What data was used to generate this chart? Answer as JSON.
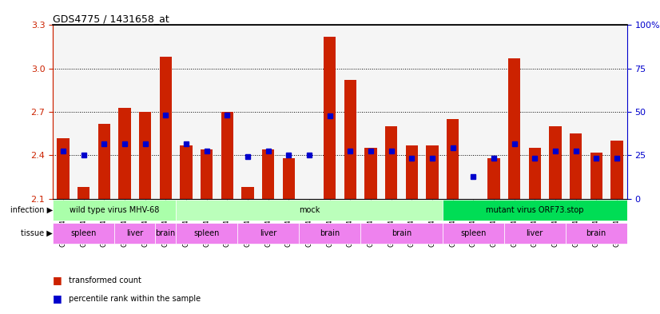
{
  "title": "GDS4775 / 1431658_at",
  "samples": [
    "GSM1243471",
    "GSM1243472",
    "GSM1243473",
    "GSM1243462",
    "GSM1243463",
    "GSM1243464",
    "GSM1243480",
    "GSM1243481",
    "GSM1243482",
    "GSM1243468",
    "GSM1243469",
    "GSM1243470",
    "GSM1243458",
    "GSM1243459",
    "GSM1243460",
    "GSM1243461",
    "GSM1243477",
    "GSM1243478",
    "GSM1243479",
    "GSM1243474",
    "GSM1243475",
    "GSM1243476",
    "GSM1243465",
    "GSM1243466",
    "GSM1243467",
    "GSM1243483",
    "GSM1243484",
    "GSM1243485"
  ],
  "red_values": [
    2.52,
    2.18,
    2.62,
    2.73,
    2.7,
    3.08,
    2.47,
    2.44,
    2.7,
    2.18,
    2.44,
    2.38,
    2.1,
    3.22,
    2.92,
    2.45,
    2.6,
    2.47,
    2.47,
    2.65,
    2.1,
    2.38,
    3.07,
    2.45,
    2.6,
    2.55,
    2.42,
    2.5
  ],
  "blue_values": [
    2.43,
    2.4,
    2.48,
    2.48,
    2.48,
    2.68,
    2.48,
    2.43,
    2.68,
    2.39,
    2.43,
    2.4,
    2.4,
    2.67,
    2.43,
    2.43,
    2.43,
    2.38,
    2.38,
    2.45,
    2.25,
    2.38,
    2.48,
    2.38,
    2.43,
    2.43,
    2.38,
    2.38
  ],
  "ylim_left": [
    2.1,
    3.3
  ],
  "ylim_right": [
    0,
    100
  ],
  "yticks_left": [
    2.1,
    2.4,
    2.7,
    3.0,
    3.3
  ],
  "yticks_right": [
    0,
    25,
    50,
    75,
    100
  ],
  "infection_groups": [
    {
      "label": "wild type virus MHV-68",
      "start": 0,
      "end": 6,
      "color": "#90EE90"
    },
    {
      "label": "mock",
      "start": 6,
      "end": 19,
      "color": "#90EE90"
    },
    {
      "label": "mutant virus ORF73.stop",
      "start": 19,
      "end": 28,
      "color": "#00CC44"
    }
  ],
  "tissue_groups": [
    {
      "label": "spleen",
      "start": 0,
      "end": 3,
      "color": "#DA70D6"
    },
    {
      "label": "liver",
      "start": 3,
      "end": 5,
      "color": "#DA70D6"
    },
    {
      "label": "brain",
      "start": 5,
      "end": 6,
      "color": "#DA70D6"
    },
    {
      "label": "spleen",
      "start": 6,
      "end": 9,
      "color": "#DA70D6"
    },
    {
      "label": "liver",
      "start": 9,
      "end": 12,
      "color": "#DA70D6"
    },
    {
      "label": "brain",
      "start": 12,
      "end": 15,
      "color": "#DA70D6"
    },
    {
      "label": "brain",
      "start": 15,
      "end": 19,
      "color": "#DA70D6"
    },
    {
      "label": "spleen",
      "start": 19,
      "end": 22,
      "color": "#DA70D6"
    },
    {
      "label": "liver",
      "start": 22,
      "end": 25,
      "color": "#DA70D6"
    },
    {
      "label": "brain",
      "start": 25,
      "end": 28,
      "color": "#DA70D6"
    }
  ],
  "bar_color": "#CC2200",
  "dot_color": "#0000CC",
  "grid_color": "#888888",
  "background_color": "#f5f5f5",
  "left_axis_color": "#CC2200",
  "right_axis_color": "#0000CC"
}
